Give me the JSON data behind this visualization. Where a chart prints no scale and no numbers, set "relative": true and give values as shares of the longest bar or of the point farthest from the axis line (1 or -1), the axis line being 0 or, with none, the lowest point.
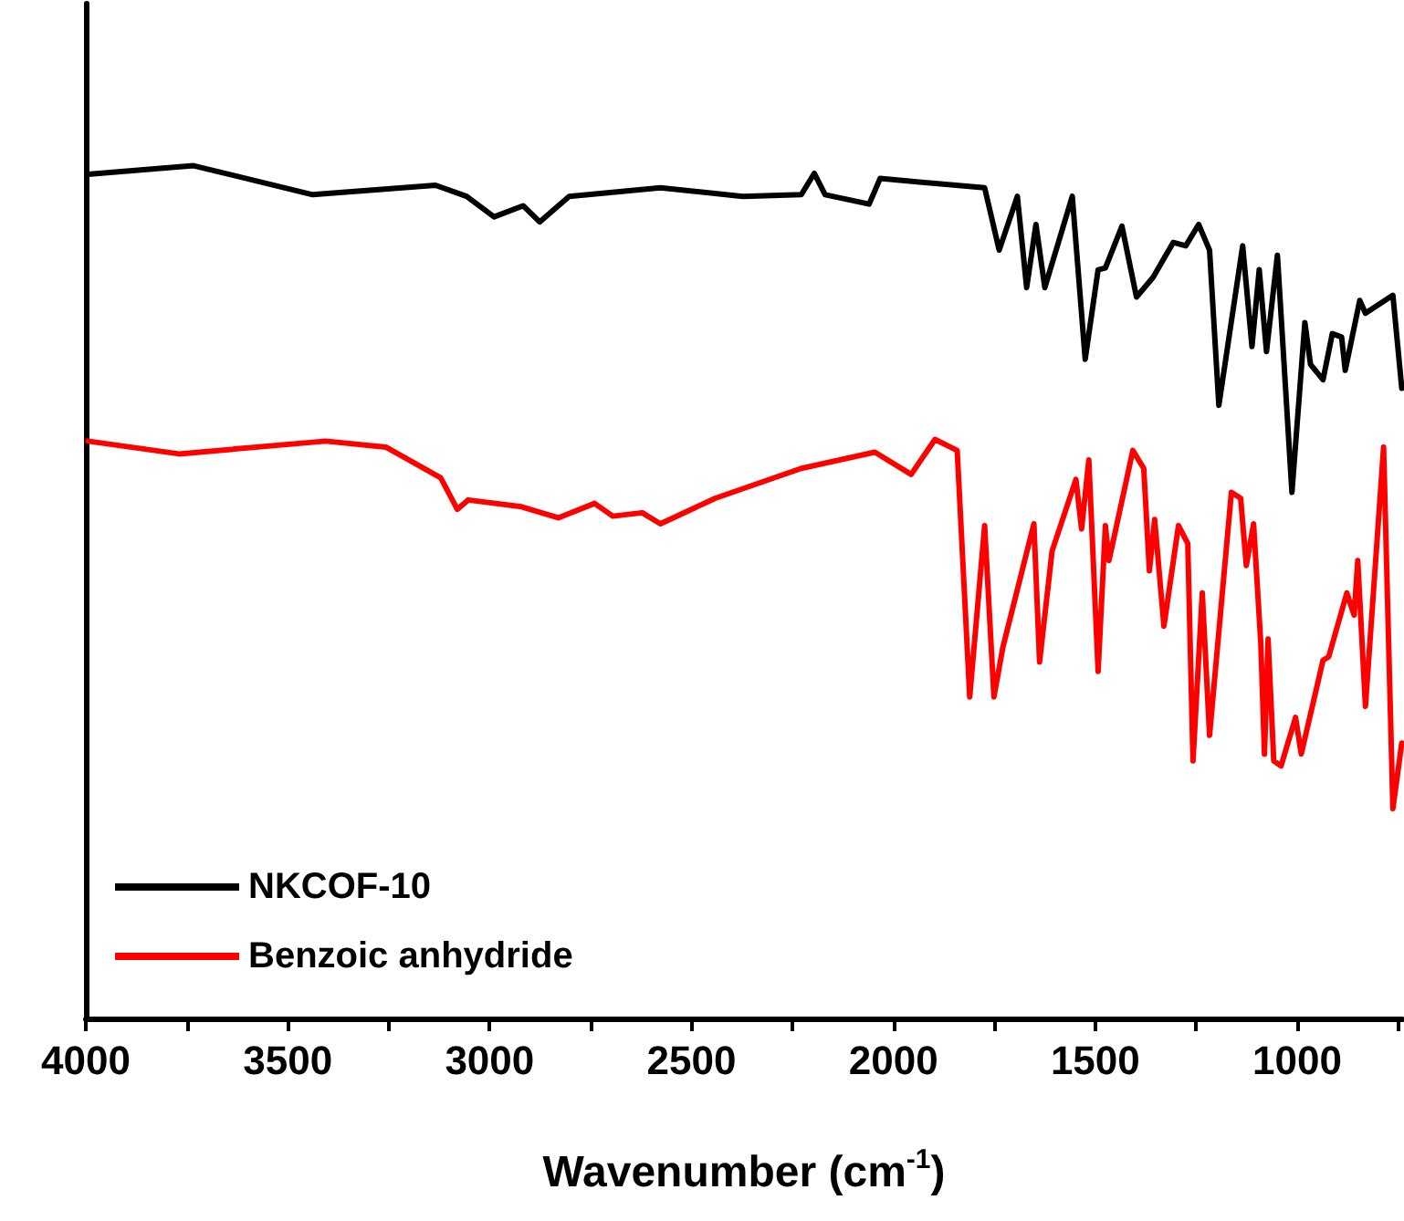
{
  "chart_data": {
    "type": "line",
    "xlabel": "Wavenumber (cm$^{-1}$)",
    "relative": true,
    "grid": false,
    "legend": "bottom left",
    "marker": "none",
    "line_style": "solid",
    "xlim": [
      4000,
      740
    ],
    "xticks": [
      4000,
      {
        "value": 3750,
        "label": null
      },
      3500,
      {
        "value": 3250,
        "label": null
      },
      3000,
      {
        "value": 2750,
        "label": null
      },
      2500,
      {
        "value": 2250,
        "label": null
      },
      2000,
      {
        "value": 1750,
        "label": null
      },
      1500,
      {
        "value": 1250,
        "label": null
      },
      1000,
      {
        "value": 750,
        "label": null
      }
    ],
    "series": [
      {
        "name": "NKCOF-10",
        "color": "#000000",
        "x": [
          3995,
          3733,
          3438,
          3134,
          3057,
          2989,
          2917,
          2876,
          2803,
          2577,
          2373,
          2228,
          2196,
          2169,
          2060,
          2033,
          1774,
          1738,
          1693,
          1670,
          1647,
          1625,
          1557,
          1525,
          1493,
          1475,
          1434,
          1398,
          1357,
          1307,
          1276,
          1244,
          1217,
          1194,
          1135,
          1112,
          1094,
          1076,
          1049,
          1013,
          981,
          967,
          936,
          913,
          890,
          881,
          845,
          831,
          763,
          741
        ],
        "values": [
          0.99,
          1.0,
          0.966,
          0.977,
          0.964,
          0.94,
          0.953,
          0.934,
          0.964,
          0.974,
          0.964,
          0.966,
          0.991,
          0.966,
          0.955,
          0.985,
          0.974,
          0.901,
          0.964,
          0.857,
          0.931,
          0.857,
          0.964,
          0.773,
          0.878,
          0.88,
          0.929,
          0.846,
          0.869,
          0.91,
          0.906,
          0.931,
          0.901,
          0.719,
          0.906,
          0.788,
          0.878,
          0.782,
          0.895,
          0.617,
          0.816,
          0.767,
          0.749,
          0.803,
          0.799,
          0.76,
          0.842,
          0.827,
          0.848,
          0.739
        ]
      },
      {
        "name": "Benzoic anhydride",
        "color": "#ff0000",
        "x": [
          3995,
          3769,
          3406,
          3257,
          3121,
          3080,
          3053,
          2921,
          2830,
          2740,
          2695,
          2622,
          2577,
          2441,
          2228,
          2046,
          1956,
          1897,
          1842,
          1811,
          1774,
          1751,
          1729,
          1652,
          1638,
          1607,
          1548,
          1534,
          1516,
          1493,
          1475,
          1466,
          1407,
          1380,
          1366,
          1353,
          1330,
          1294,
          1271,
          1258,
          1235,
          1217,
          1163,
          1140,
          1126,
          1108,
          1090,
          1081,
          1072,
          1058,
          1040,
          1004,
          990,
          936,
          922,
          877,
          859,
          850,
          831,
          786,
          763,
          741
        ],
        "values": [
          0.677,
          0.662,
          0.677,
          0.67,
          0.634,
          0.597,
          0.608,
          0.6,
          0.587,
          0.604,
          0.589,
          0.593,
          0.58,
          0.61,
          0.645,
          0.664,
          0.638,
          0.679,
          0.666,
          0.377,
          0.578,
          0.377,
          0.435,
          0.58,
          0.418,
          0.548,
          0.632,
          0.574,
          0.655,
          0.407,
          0.578,
          0.537,
          0.666,
          0.645,
          0.525,
          0.585,
          0.46,
          0.578,
          0.557,
          0.302,
          0.499,
          0.332,
          0.617,
          0.61,
          0.531,
          0.58,
          0.439,
          0.31,
          0.445,
          0.302,
          0.296,
          0.353,
          0.31,
          0.42,
          0.424,
          0.499,
          0.473,
          0.537,
          0.366,
          0.67,
          0.246,
          0.323
        ]
      }
    ]
  }
}
